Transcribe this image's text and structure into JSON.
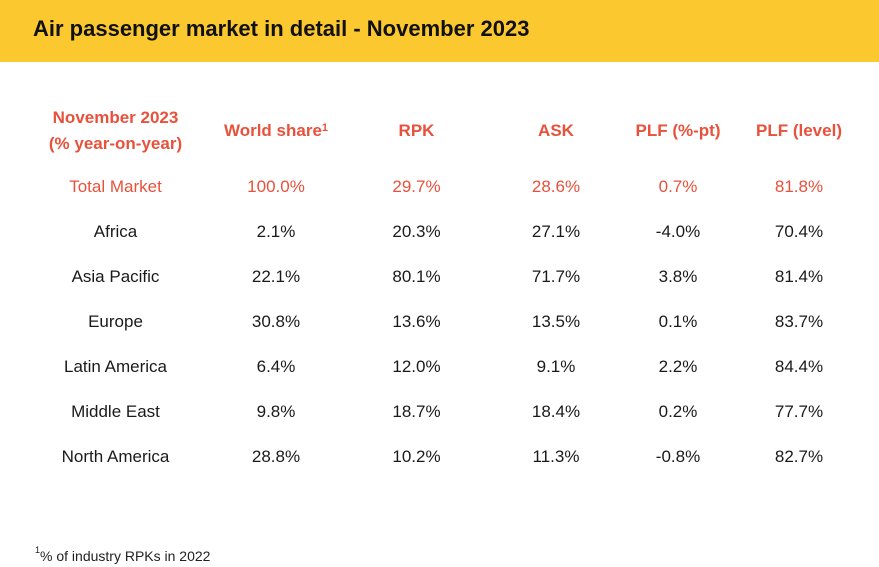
{
  "title": "Air passenger market in detail - November 2023",
  "table": {
    "headers": {
      "region_line1": "November 2023",
      "region_line2": "(% year-on-year)",
      "world_share": "World share",
      "world_share_sup": "1",
      "rpk": "RPK",
      "ask": "ASK",
      "plf_pt": "PLF (%-pt)",
      "plf_level": "PLF (level)"
    },
    "rows": [
      {
        "region": "Total Market",
        "world_share": "100.0%",
        "rpk": "29.7%",
        "ask": "28.6%",
        "plf_pt": "0.7%",
        "plf_level": "81.8%"
      },
      {
        "region": "Africa",
        "world_share": "2.1%",
        "rpk": "20.3%",
        "ask": "27.1%",
        "plf_pt": "-4.0%",
        "plf_level": "70.4%"
      },
      {
        "region": "Asia Pacific",
        "world_share": "22.1%",
        "rpk": "80.1%",
        "ask": "71.7%",
        "plf_pt": "3.8%",
        "plf_level": "81.4%"
      },
      {
        "region": "Europe",
        "world_share": "30.8%",
        "rpk": "13.6%",
        "ask": "13.5%",
        "plf_pt": "0.1%",
        "plf_level": "83.7%"
      },
      {
        "region": "Latin America",
        "world_share": "6.4%",
        "rpk": "12.0%",
        "ask": "9.1%",
        "plf_pt": "2.2%",
        "plf_level": "84.4%"
      },
      {
        "region": "Middle East",
        "world_share": "9.8%",
        "rpk": "18.7%",
        "ask": "18.4%",
        "plf_pt": "0.2%",
        "plf_level": "77.7%"
      },
      {
        "region": "North America",
        "world_share": "28.8%",
        "rpk": "10.2%",
        "ask": "11.3%",
        "plf_pt": "-0.8%",
        "plf_level": "82.7%"
      }
    ]
  },
  "footnote": {
    "marker": "1",
    "text": "% of industry RPKs in 2022"
  },
  "colors": {
    "title_bar": "#fbc82f",
    "accent_red": "#e8513b",
    "body_text": "#1a1a1a"
  }
}
